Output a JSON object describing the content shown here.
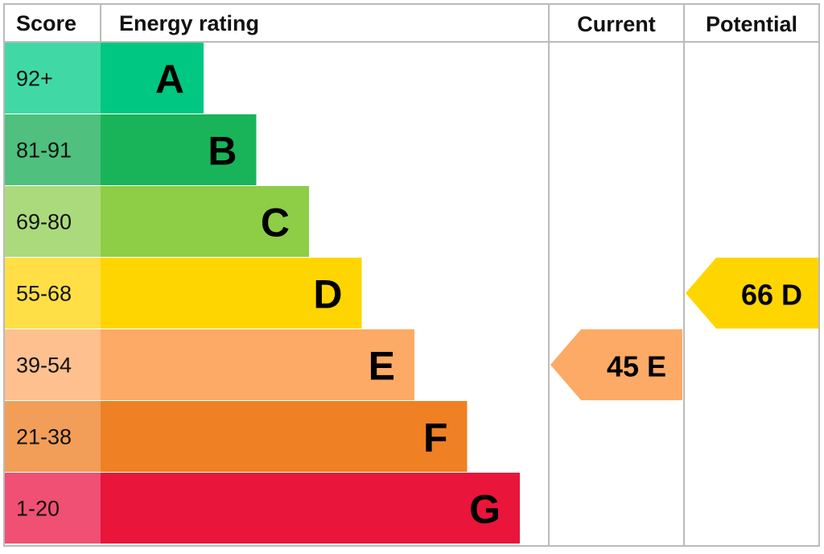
{
  "header": {
    "score": "Score",
    "rating": "Energy rating",
    "current": "Current",
    "potential": "Potential"
  },
  "bands": [
    {
      "score": "92+",
      "letter": "A",
      "color": "#00c781",
      "score_color": "#40d9a6"
    },
    {
      "score": "81-91",
      "letter": "B",
      "color": "#19b459",
      "score_color": "#4fc07e"
    },
    {
      "score": "69-80",
      "letter": "C",
      "color": "#8dce46",
      "score_color": "#abda7c"
    },
    {
      "score": "55-68",
      "letter": "D",
      "color": "#ffd500",
      "score_color": "#ffdf45"
    },
    {
      "score": "39-54",
      "letter": "E",
      "color": "#fcaa65",
      "score_color": "#fdc08e"
    },
    {
      "score": "21-38",
      "letter": "F",
      "color": "#ef8023",
      "score_color": "#f29e58"
    },
    {
      "score": "1-20",
      "letter": "G",
      "color": "#e9153b",
      "score_color": "#ef5073"
    }
  ],
  "current": {
    "label": "45 E",
    "band": 4
  },
  "potential": {
    "label": "66 D",
    "band": 3
  }
}
